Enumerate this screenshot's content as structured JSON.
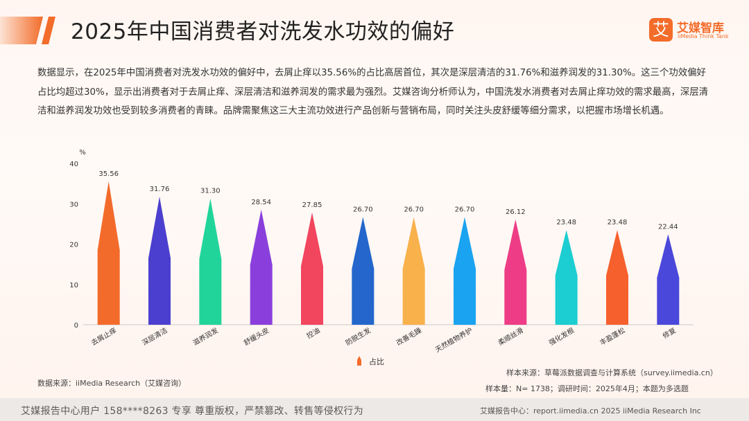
{
  "header": {
    "title": "2025年中国消费者对洗发水功效的偏好",
    "logo_mark": "艾",
    "logo_cn": "艾媒智库",
    "logo_en": "iiMedia Think Tank"
  },
  "summary": "数据显示，在2025年中国消费者对洗发水功效的偏好中，去屑止痒以35.56%的占比高居首位，其次是深层清洁的31.76%和滋养润发的31.30%。这三个功效偏好占比均超过30%，显示出消费者对于去屑止痒、深层清洁和滋养润发的需求最为强烈。艾媒咨询分析师认为，中国洗发水消费者对去屑止痒功效的需求最高，深层清洁和滋养润发功效也受到较多消费者的青睐。品牌需聚焦这三大主流功效进行产品创新与营销布局，同时关注头皮舒缓等细分需求，以把握市场增长机遇。",
  "chart_data": {
    "type": "bar",
    "ylabel": "%",
    "ylim": [
      0,
      40
    ],
    "yticks": [
      "0",
      "10",
      "20",
      "30",
      "40"
    ],
    "categories": [
      "去屑止痒",
      "深层清洁",
      "滋养润发",
      "舒缓头皮",
      "控油",
      "防脱生发",
      "改善毛躁",
      "天然植物养护",
      "柔顺丝滑",
      "强化发根",
      "丰盈蓬松",
      "修复"
    ],
    "series": [
      {
        "name": "占比",
        "values": [
          35.56,
          31.76,
          31.3,
          28.54,
          27.85,
          26.7,
          26.7,
          26.7,
          26.12,
          23.48,
          23.48,
          22.44
        ]
      }
    ],
    "value_labels": [
      "35.56",
      "31.76",
      "31.30",
      "28.54",
      "27.85",
      "26.70",
      "26.70",
      "26.70",
      "26.12",
      "23.48",
      "23.48",
      "22.44"
    ],
    "colors": [
      "#f36b2b",
      "#4b3fcf",
      "#21d59a",
      "#8a3fdc",
      "#f2455e",
      "#2466cc",
      "#f9b14b",
      "#1aa3f0",
      "#ee3d86",
      "#1ccdd1",
      "#f6602c",
      "#4a48da"
    ],
    "legend_position": "bottom",
    "grid": false
  },
  "footer": {
    "source": "数据来源：iiMedia Research（艾媒咨询）",
    "sample_source": "样本来源：草莓派数据调查与计算系统（survey.iimedia.cn）",
    "sample_size": "样本量：N= 1738；调研时间：2025年4月；本题为多选题",
    "bar_left": "艾媒报告中心用户 158****8263 专享 尊重版权，严禁篡改、转售等侵权行为",
    "bar_right": "艾媒报告中心：report.iimedia.cn  2025 iiMedia Research Inc"
  }
}
